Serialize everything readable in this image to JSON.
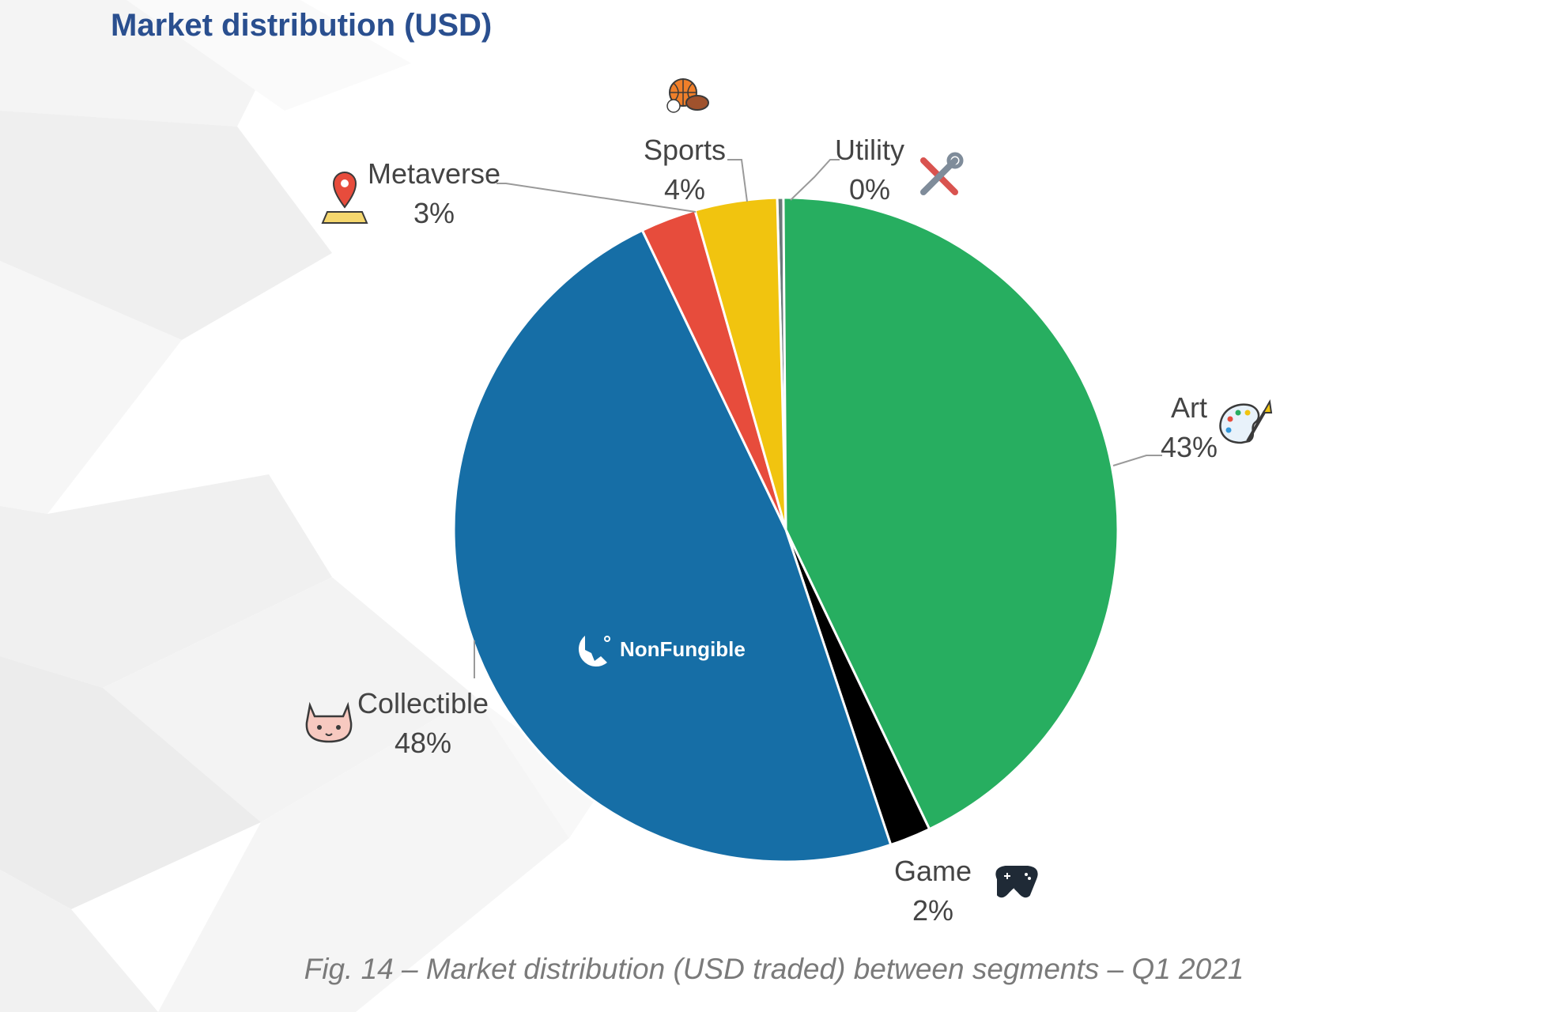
{
  "title": "Market distribution (USD)",
  "caption": "Fig. 14 – Market distribution (USD traded) between segments – Q1 2021",
  "watermark": "NonFungible",
  "chart_data": {
    "type": "pie",
    "title": "Market distribution (USD)",
    "start_order": [
      "Utility",
      "Art",
      "Game",
      "Collectible",
      "Metaverse",
      "Sports"
    ],
    "slices": [
      {
        "name": "Utility",
        "label": "0%",
        "value": 0.3,
        "color": "#6b7a7a",
        "icon": "tools-icon"
      },
      {
        "name": "Art",
        "label": "43%",
        "value": 43.0,
        "color": "#27ae60",
        "icon": "palette-icon"
      },
      {
        "name": "Game",
        "label": "2%",
        "value": 2.0,
        "color": "#000000",
        "icon": "gamepad-icon"
      },
      {
        "name": "Collectible",
        "label": "48%",
        "value": 48.0,
        "color": "#166ea6",
        "icon": "cat-face-icon"
      },
      {
        "name": "Metaverse",
        "label": "3%",
        "value": 2.7,
        "color": "#e74c3c",
        "icon": "map-pin-icon"
      },
      {
        "name": "Sports",
        "label": "4%",
        "value": 4.0,
        "color": "#f1c40f",
        "icon": "sports-balls-icon"
      }
    ],
    "legend": "none"
  }
}
